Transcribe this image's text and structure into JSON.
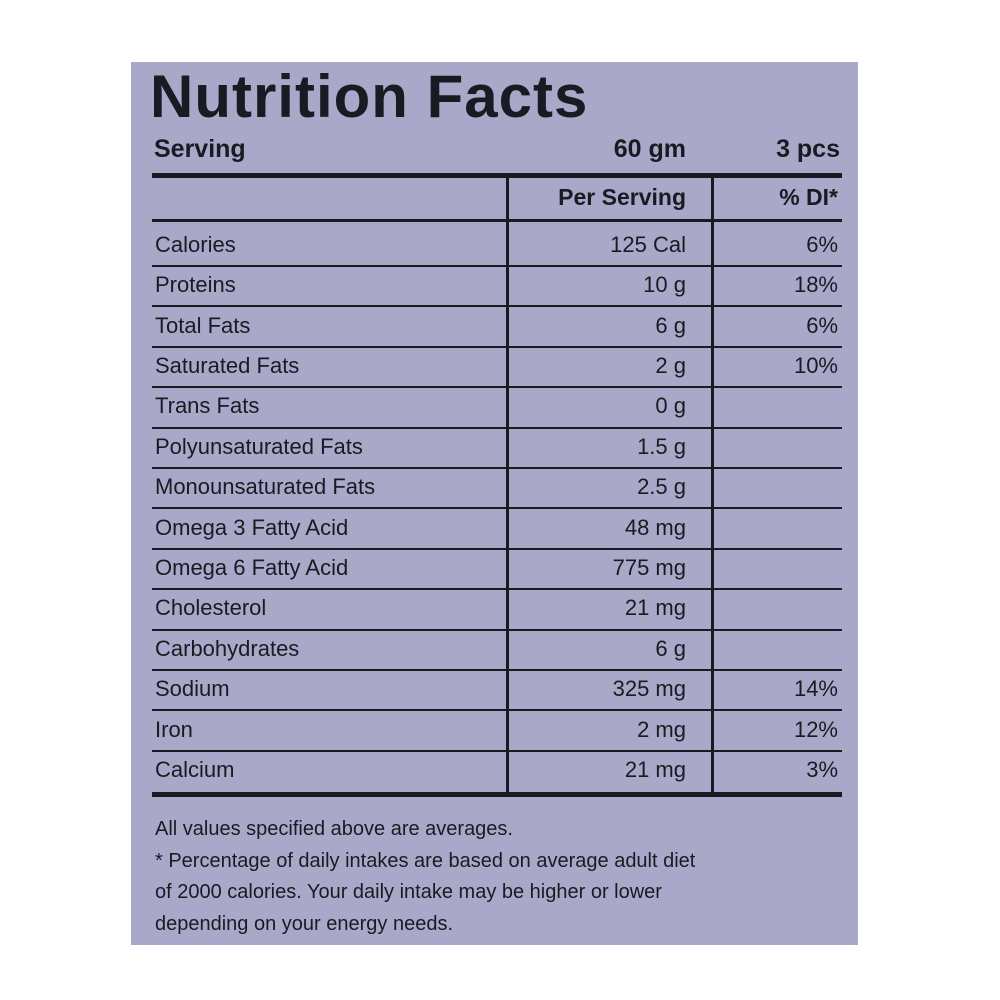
{
  "header": {
    "title": "Nutrition Facts"
  },
  "serving": {
    "label": "Serving",
    "amount": "60 gm",
    "pieces": "3 pcs"
  },
  "table": {
    "columns": [
      "Per Serving",
      "% DI*"
    ],
    "rows": [
      {
        "name": "Calories",
        "amount": "125 Cal",
        "di": "6%"
      },
      {
        "name": "Proteins",
        "amount": "10 g",
        "di": "18%"
      },
      {
        "name": "Total Fats",
        "amount": "6 g",
        "di": "6%"
      },
      {
        "name": "Saturated Fats",
        "amount": "2 g",
        "di": "10%"
      },
      {
        "name": "Trans Fats",
        "amount": "0 g"
      },
      {
        "name": "Polyunsaturated Fats",
        "amount": "1.5 g"
      },
      {
        "name": "Monounsaturated Fats",
        "amount": "2.5 g"
      },
      {
        "name": "Omega 3 Fatty Acid",
        "amount": "48 mg"
      },
      {
        "name": "Omega 6 Fatty Acid",
        "amount": "775 mg"
      },
      {
        "name": "Cholesterol",
        "amount": "21 mg"
      },
      {
        "name": "Carbohydrates",
        "amount": "6 g"
      },
      {
        "name": "Sodium",
        "amount": "325 mg",
        "di": "14%"
      },
      {
        "name": "Iron",
        "amount": "2 mg",
        "di": "12%"
      },
      {
        "name": "Calcium",
        "amount": "21 mg",
        "di": "3%"
      }
    ]
  },
  "footnote": [
    "All values specified above are averages.",
    "* Percentage of daily intakes are based on average adult diet",
    "of 2000 calories. Your daily intake may be higher or lower",
    "depending on your energy needs."
  ]
}
